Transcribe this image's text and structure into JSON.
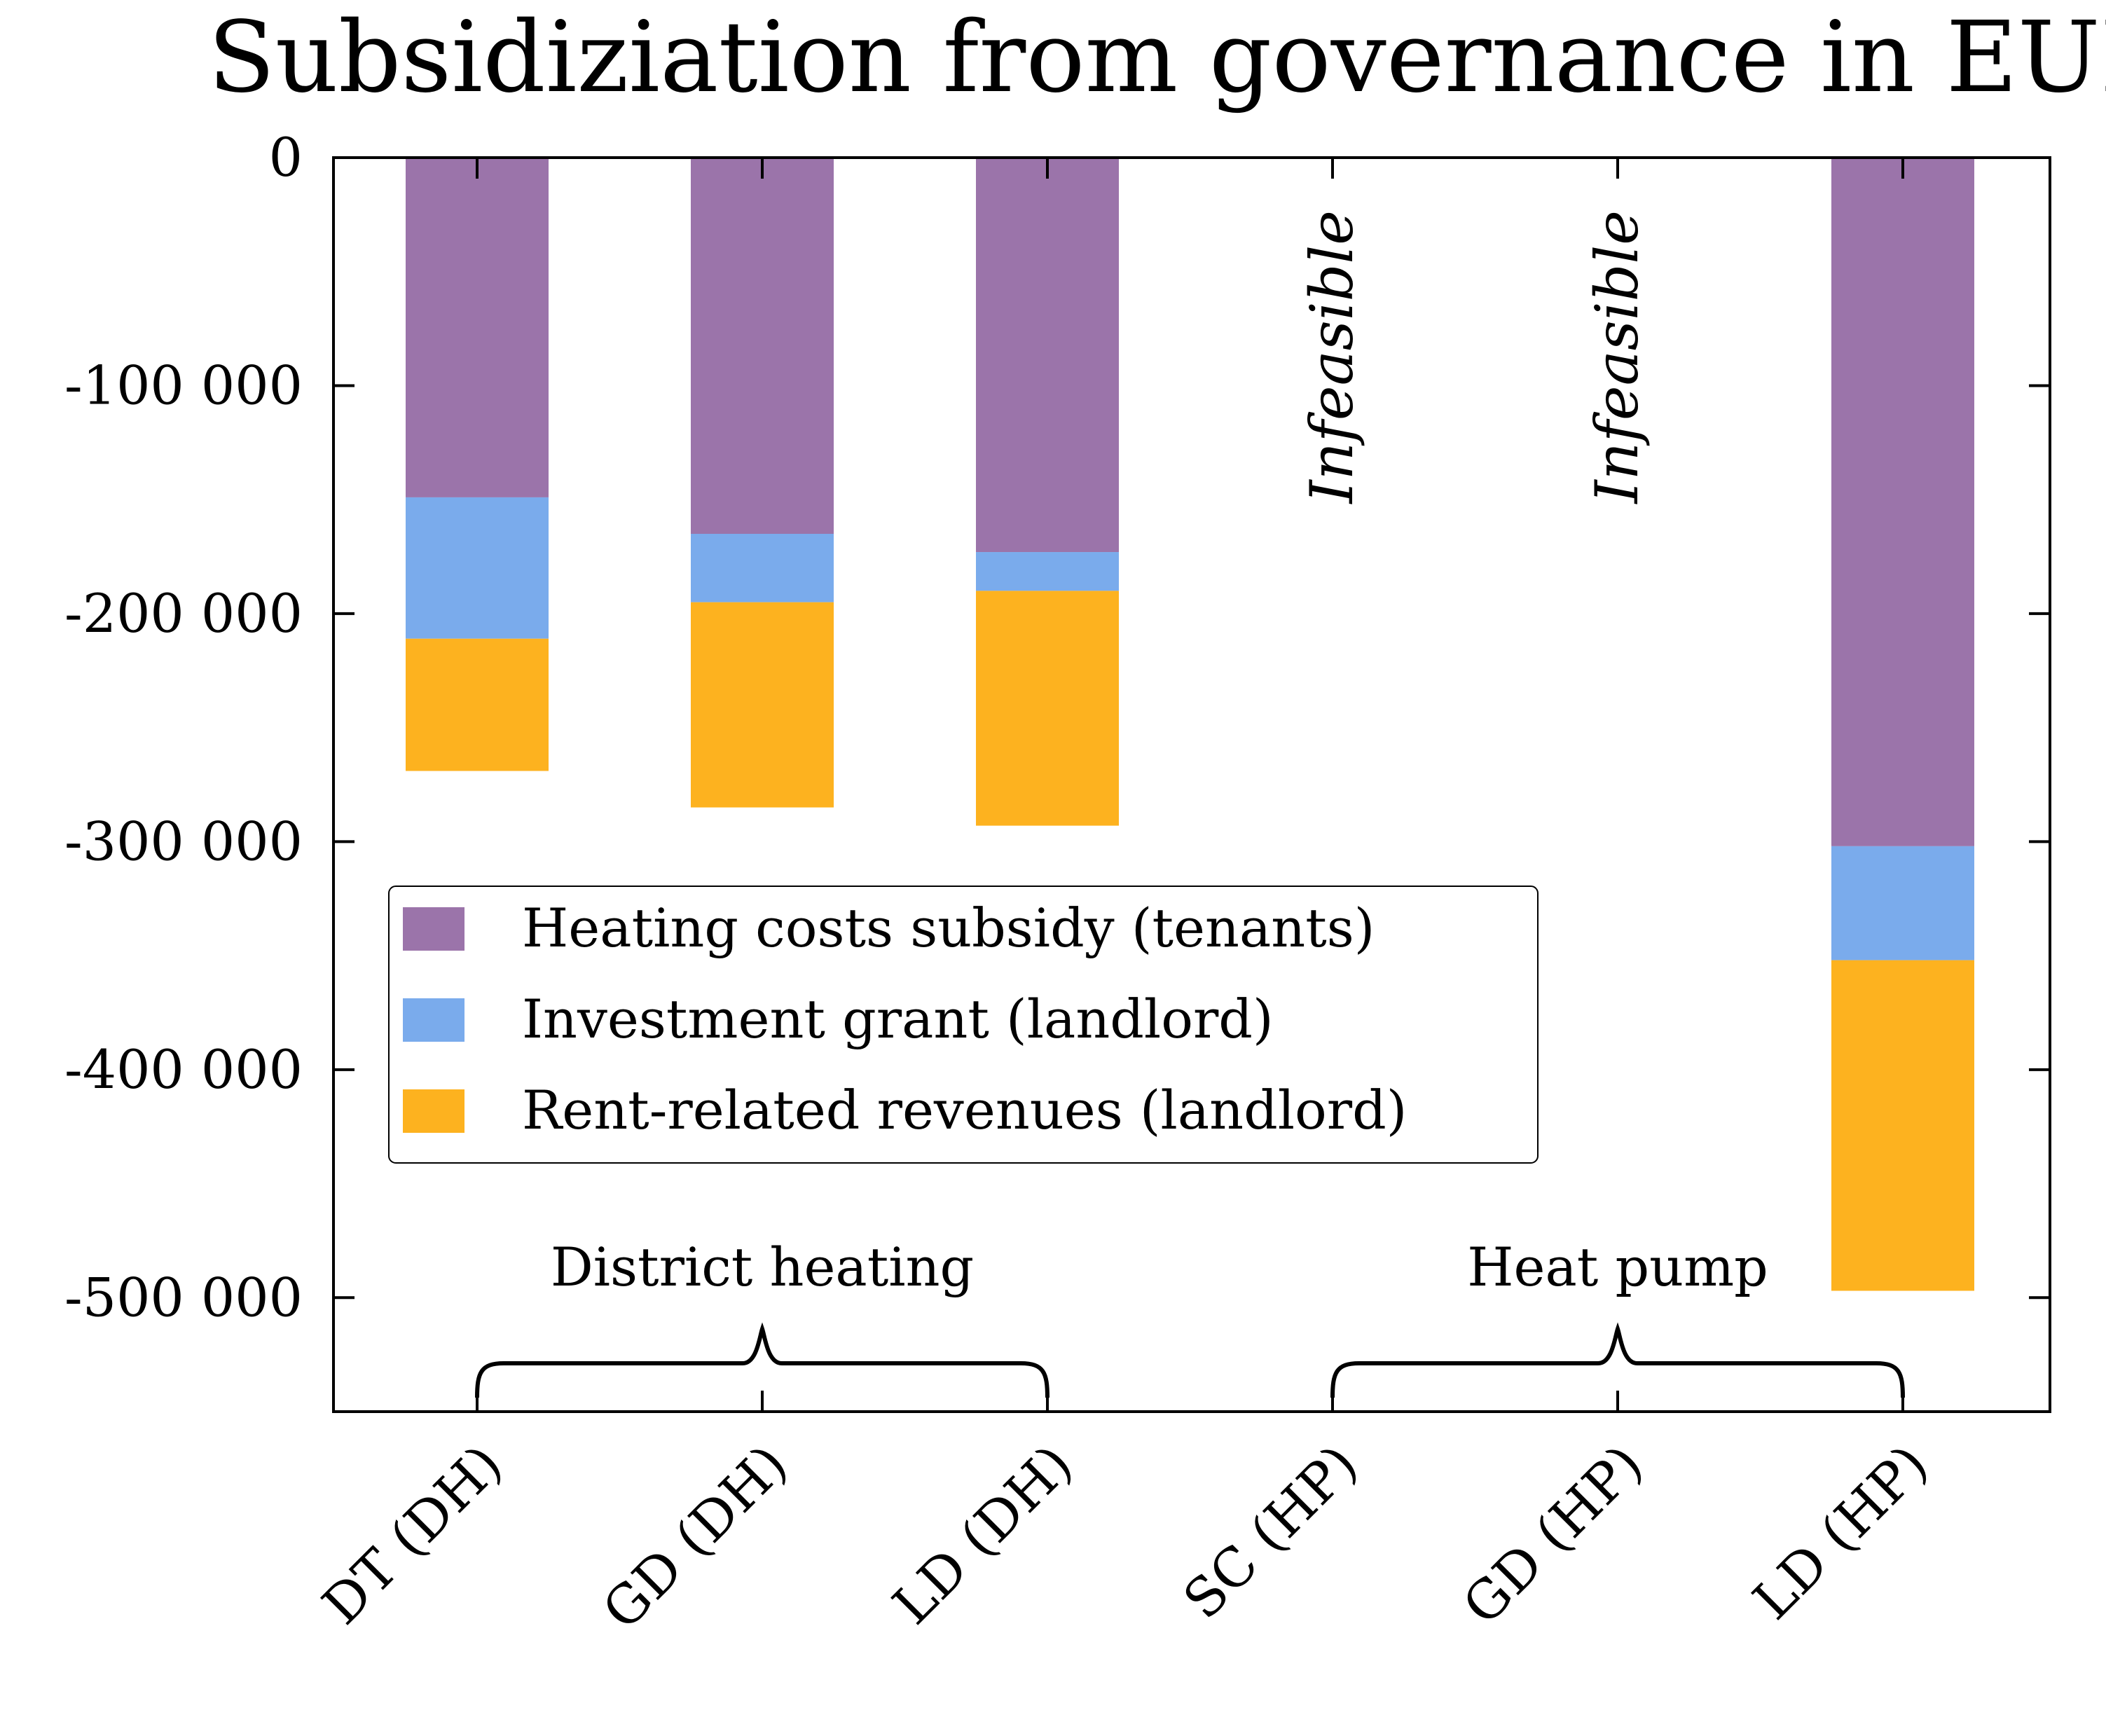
{
  "chart_data": {
    "type": "bar",
    "stacked": true,
    "title": "Subsidiziation from governance in EUR",
    "xlabel": "",
    "ylabel": "",
    "ylim": [
      -550000,
      0
    ],
    "yticks": [
      0,
      -100000,
      -200000,
      -300000,
      -400000,
      -500000
    ],
    "ytick_labels": [
      "0",
      "-100 000",
      "-200 000",
      "-300 000",
      "-400 000",
      "-500 000"
    ],
    "categories": [
      "DT (DH)",
      "GD (DH)",
      "LD (DH)",
      "SC (HP)",
      "GD (HP)",
      "LD (HP)"
    ],
    "series": [
      {
        "name": "Heating costs subsidy (tenants)",
        "color": "#9b74aa",
        "values": [
          -149000,
          -165000,
          -173000,
          null,
          null,
          -302000
        ]
      },
      {
        "name": "Investment grant (landlord)",
        "color": "#7aabec",
        "values": [
          -62000,
          -30000,
          -17000,
          null,
          null,
          -50000
        ]
      },
      {
        "name": "Rent-related revenues (landlord)",
        "color": "#fdb21f",
        "values": [
          -58000,
          -90000,
          -103000,
          null,
          null,
          -145000
        ]
      }
    ],
    "annotations": [
      {
        "category_index": 3,
        "text": "Infeasible"
      },
      {
        "category_index": 4,
        "text": "Infeasible"
      }
    ],
    "groups": [
      {
        "label": "District heating",
        "from": 0,
        "to": 2
      },
      {
        "label": "Heat pump",
        "from": 3,
        "to": 5
      }
    ],
    "legend_position": "center-left",
    "grid": false
  }
}
